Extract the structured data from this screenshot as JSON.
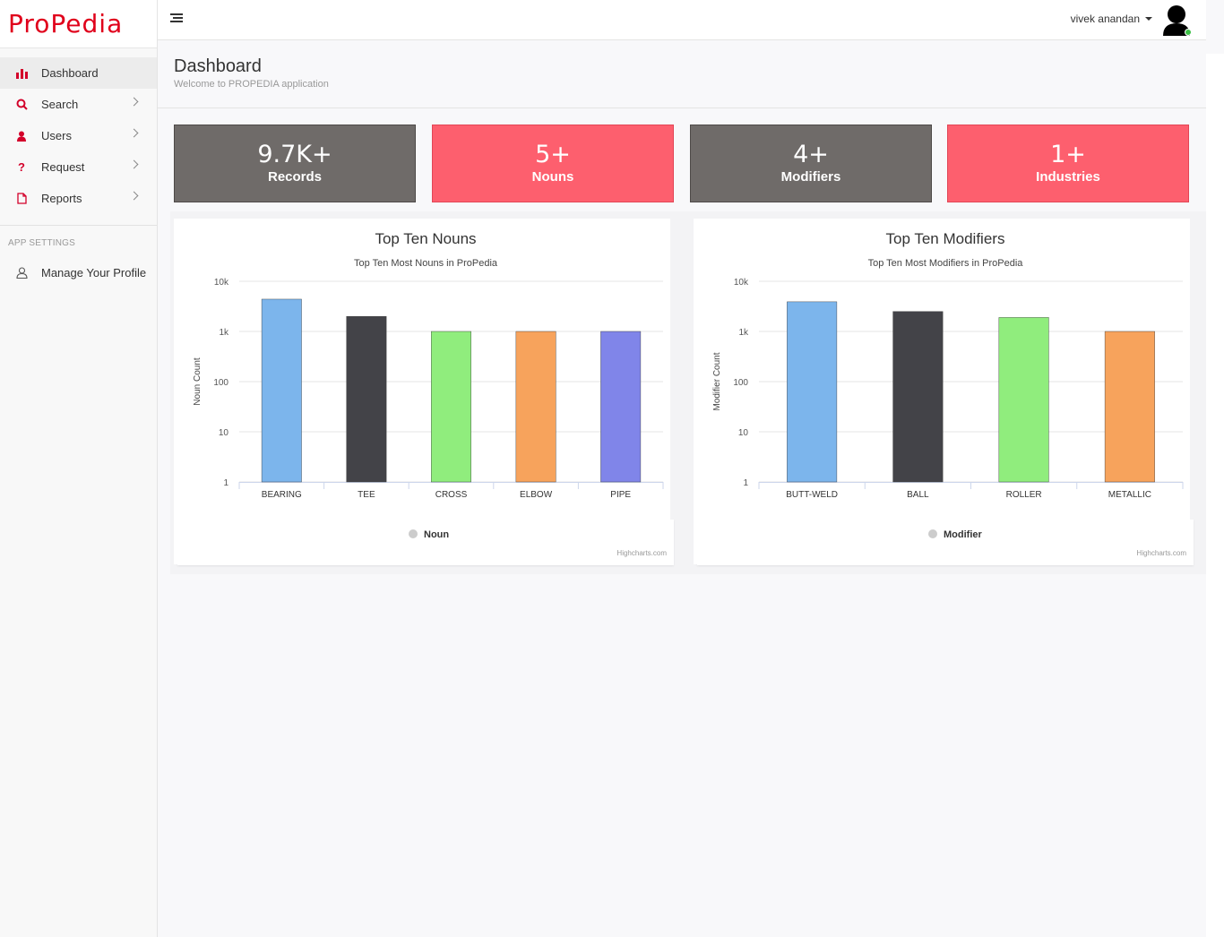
{
  "brand": {
    "logo_part1": "Pro",
    "logo_part2": "Pedia",
    "accent": "#e0001b"
  },
  "sidebar": {
    "items": [
      {
        "label": "Dashboard",
        "icon": "bar-chart-icon",
        "active": true
      },
      {
        "label": "Search",
        "icon": "search-icon"
      },
      {
        "label": "Users",
        "icon": "user-icon"
      },
      {
        "label": "Request",
        "icon": "question-icon"
      },
      {
        "label": "Reports",
        "icon": "document-icon"
      }
    ],
    "section_label": "APP SETTINGS",
    "profile_label": "Manage Your Profile"
  },
  "topbar": {
    "user_name": "vivek anandan"
  },
  "header": {
    "title": "Dashboard",
    "subtitle": "Welcome to PROPEDIA application"
  },
  "stats": [
    {
      "value": "9.7K+",
      "label": "Records",
      "color": "#6f6b69"
    },
    {
      "value": "5+",
      "label": "Nouns",
      "color": "#fd5f6e"
    },
    {
      "value": "4+",
      "label": "Modifiers",
      "color": "#6f6b69"
    },
    {
      "value": "1+",
      "label": "Industries",
      "color": "#fd5f6e"
    }
  ],
  "credits": "Highcharts.com",
  "chart_data": [
    {
      "type": "bar",
      "title": "Top Ten Nouns",
      "subtitle": "Top Ten Most Nouns in ProPedia",
      "xlabel": "",
      "ylabel": "Noun Count",
      "yscale": "log",
      "ylim": [
        1,
        10000
      ],
      "yticks": [
        "1",
        "10",
        "100",
        "1k",
        "10k"
      ],
      "categories": [
        "BEARING",
        "TEE",
        "CROSS",
        "ELBOW",
        "PIPE"
      ],
      "series": [
        {
          "name": "Noun",
          "values": [
            4400,
            2000,
            1000,
            1000,
            1000
          ]
        }
      ],
      "colors": [
        "#7cb5ec",
        "#434348",
        "#90ed7d",
        "#f7a35c",
        "#8085e9"
      ],
      "grid": true,
      "legend": "bottom-center"
    },
    {
      "type": "bar",
      "title": "Top Ten Modifiers",
      "subtitle": "Top Ten Most Modifiers in ProPedia",
      "xlabel": "",
      "ylabel": "Modifier Count",
      "yscale": "log",
      "ylim": [
        1,
        10000
      ],
      "yticks": [
        "1",
        "10",
        "100",
        "1k",
        "10k"
      ],
      "categories": [
        "BUTT-WELD",
        "BALL",
        "ROLLER",
        "METALLIC"
      ],
      "series": [
        {
          "name": "Modifier",
          "values": [
            3900,
            2500,
            1900,
            1000
          ]
        }
      ],
      "colors": [
        "#7cb5ec",
        "#434348",
        "#90ed7d",
        "#f7a35c"
      ],
      "grid": true,
      "legend": "bottom-center"
    }
  ]
}
